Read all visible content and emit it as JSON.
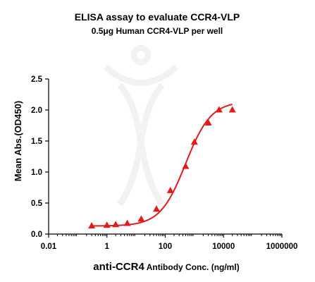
{
  "chart_data": {
    "type": "scatter",
    "title": "ELISA assay to evaluate CCR4-VLP",
    "subtitle": "0.5μg Human CCR4-VLP per well",
    "xlabel_main": "anti-CCR4",
    "xlabel_rest": " Antibody Conc. (ng/ml)",
    "ylabel": "Mean Abs.(OD450)",
    "xscale": "log",
    "xlim": [
      0.01,
      1000000
    ],
    "ylim": [
      0,
      2.5
    ],
    "xticks": [
      0.01,
      1,
      100,
      10000,
      1000000
    ],
    "xtick_labels": [
      "0.01",
      "1",
      "100",
      "10000",
      "1000000"
    ],
    "yticks": [
      0.0,
      0.5,
      1.0,
      1.5,
      2.0,
      2.5
    ],
    "ytick_labels": [
      "0.0",
      "0.5",
      "1.0",
      "1.5",
      "2.0",
      "2.5"
    ],
    "grid": false,
    "marker": "triangle",
    "color": "#e31a1c",
    "series": [
      {
        "x": [
          0.3,
          1.0,
          2.0,
          5.0,
          15.0,
          50.0,
          150.0,
          500.0,
          1000.0,
          3000.0,
          7000.0,
          20000.0
        ],
        "y": [
          0.13,
          0.14,
          0.15,
          0.17,
          0.24,
          0.4,
          0.7,
          1.09,
          1.48,
          1.79,
          2.0,
          2.0
        ]
      }
    ],
    "fit_curve": {
      "bottom": 0.13,
      "top": 2.14,
      "ec50": 500,
      "hill": 1.0
    }
  }
}
